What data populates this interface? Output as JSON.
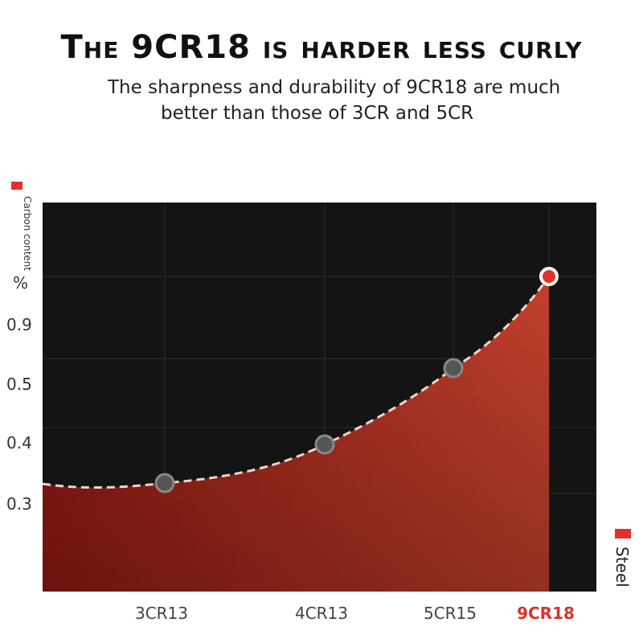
{
  "header": {
    "title": "The 9CR18 is harder less curly",
    "subtitle_line1": "The sharpness and durability of 9CR18 are much",
    "subtitle_line2": "better than those of 3CR and 5CR"
  },
  "colors": {
    "accent": "#e0322b",
    "plot_bg": "#141414",
    "area_dark": "#8e1a14",
    "area_light": "#c2402c",
    "highlight_label": "#d9332a"
  },
  "chart_data": {
    "type": "area",
    "title": "The 9CR18 is harder less curly",
    "ylabel": "Carbon content",
    "xlabel": "Steel",
    "y_unit_label": "%",
    "y_ticks": [
      "0.9",
      "0.5",
      "0.4",
      "0.3"
    ],
    "categories": [
      "3CR13",
      "4CR13",
      "5CR15",
      "9CR18"
    ],
    "highlight_category": "9CR18",
    "values": [
      0.3,
      0.4,
      0.5,
      0.9
    ],
    "grid": true,
    "line_style": "dashed",
    "icons": [
      "red-square-marker-icon"
    ]
  }
}
